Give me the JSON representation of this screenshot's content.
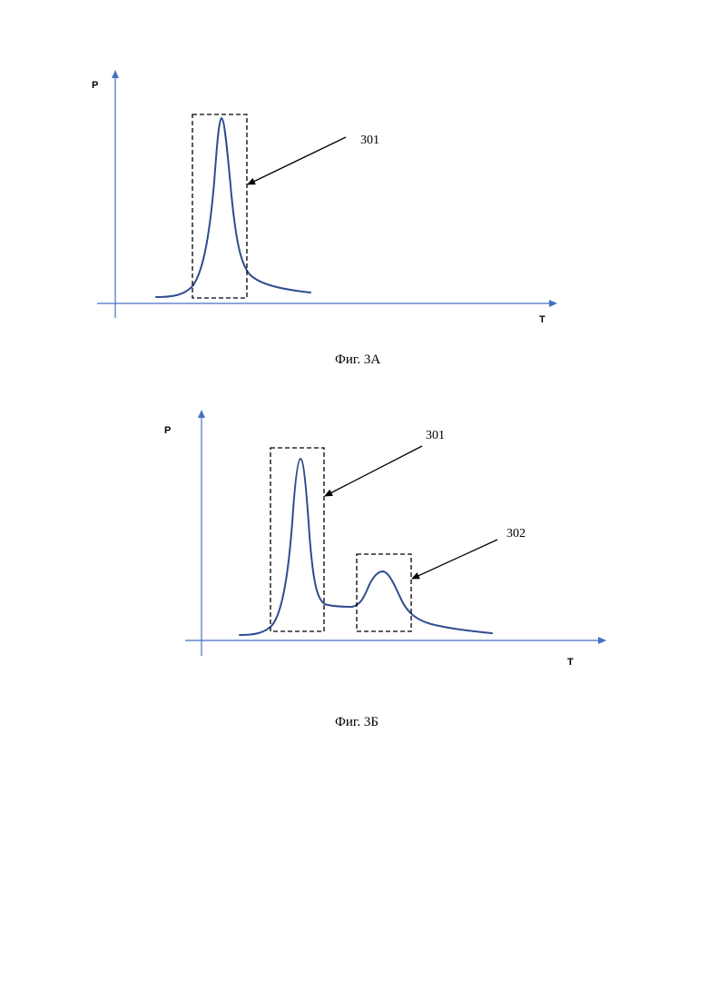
{
  "colors": {
    "axis": "#4472c4",
    "curve": "#2e4d8f",
    "annotation": "#000000"
  },
  "figures": [
    {
      "caption": "Фиг. 3А",
      "y_axis_label": "P",
      "x_axis_label": "T",
      "regions": [
        {
          "label": "301"
        }
      ]
    },
    {
      "caption": "Фиг. 3Б",
      "y_axis_label": "P",
      "x_axis_label": "T",
      "regions": [
        {
          "label": "301"
        },
        {
          "label": "302"
        }
      ]
    }
  ]
}
